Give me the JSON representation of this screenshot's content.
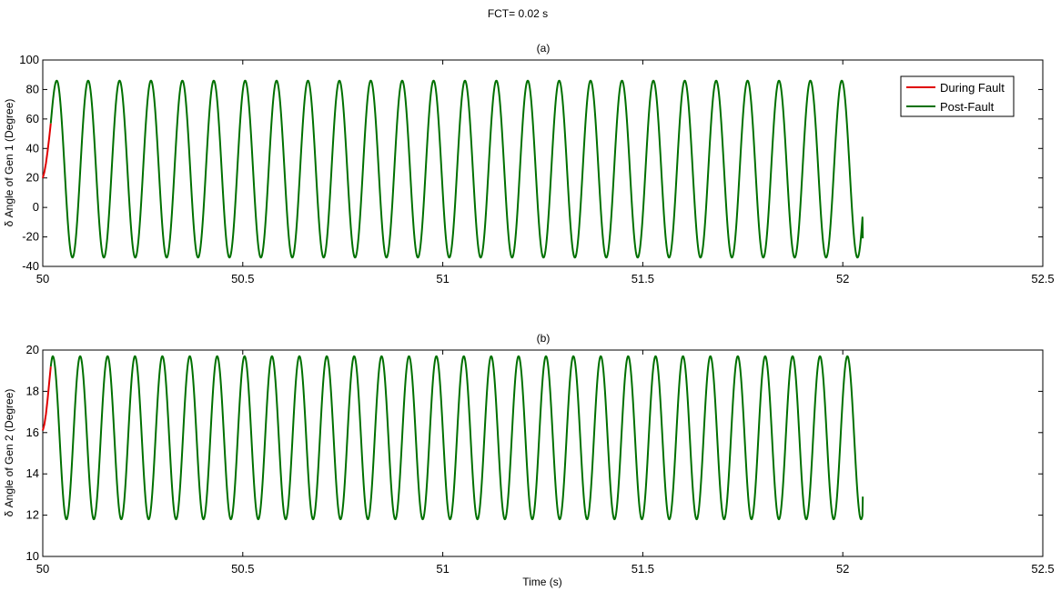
{
  "figure": {
    "suptitle": "FCT= 0.02 s"
  },
  "chart_data": [
    {
      "type": "line",
      "title": "(a)",
      "xlabel": "",
      "ylabel": "δ Angle of Gen 1 (Degree)",
      "xlim": [
        50,
        52.5
      ],
      "ylim": [
        -40,
        100
      ],
      "xticks": [
        50,
        50.5,
        51,
        51.5,
        52,
        52.5
      ],
      "yticks": [
        -40,
        -20,
        0,
        20,
        40,
        60,
        80,
        100
      ],
      "grid": false,
      "legend_position": "top-right",
      "series": [
        {
          "name": "During Fault",
          "color": "#e00000",
          "x": [
            50.0,
            50.004,
            50.008,
            50.012,
            50.016,
            50.02
          ],
          "y": [
            20,
            24,
            30,
            38,
            47,
            57
          ]
        },
        {
          "name": "Post-Fault",
          "color": "#007000",
          "oscillation": {
            "t_start": 50.02,
            "t_end": 52.05,
            "period": 0.0785,
            "initial_value": 57,
            "first_peak_time": 50.035,
            "max": 86,
            "min": -34,
            "last_value": -21
          }
        }
      ]
    },
    {
      "type": "line",
      "title": "(b)",
      "xlabel": "Time (s)",
      "ylabel": "δ Angle of Gen 2 (Degree)",
      "xlim": [
        50,
        52.5
      ],
      "ylim": [
        10,
        20
      ],
      "xticks": [
        50,
        50.5,
        51,
        51.5,
        52,
        52.5
      ],
      "yticks": [
        10,
        12,
        14,
        16,
        18,
        20
      ],
      "grid": false,
      "series": [
        {
          "name": "During Fault",
          "color": "#e00000",
          "x": [
            50.0,
            50.004,
            50.008,
            50.012,
            50.016,
            50.02
          ],
          "y": [
            16.1,
            16.4,
            16.9,
            17.6,
            18.4,
            19.2
          ]
        },
        {
          "name": "Post-Fault",
          "color": "#007000",
          "oscillation": {
            "t_start": 50.02,
            "t_end": 52.05,
            "period": 0.0685,
            "initial_value": 19.2,
            "first_peak_time": 50.025,
            "max": 19.7,
            "min": 11.8,
            "last_value": 12.9
          }
        }
      ]
    }
  ]
}
